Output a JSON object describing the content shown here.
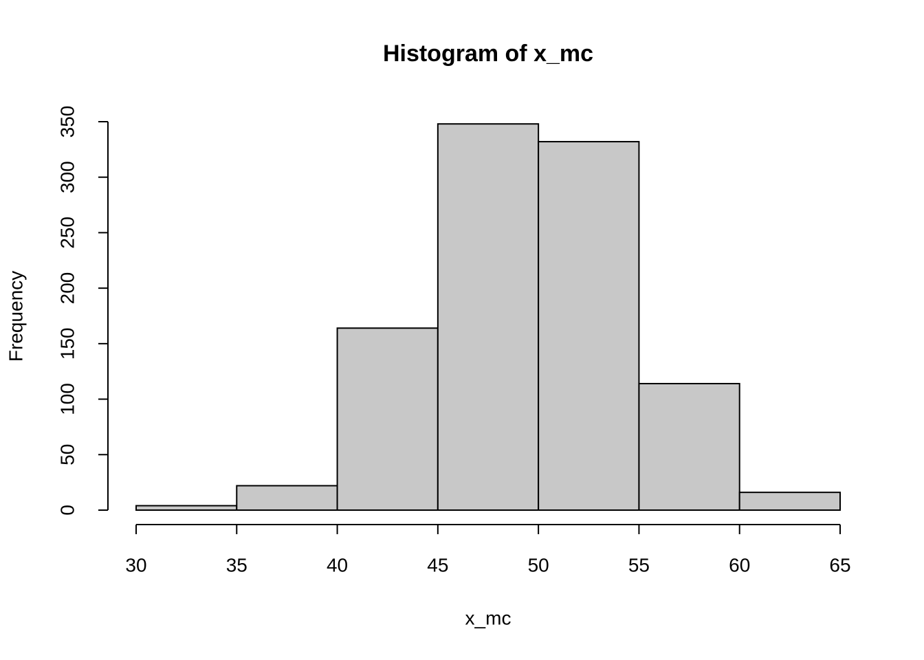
{
  "chart_data": {
    "type": "histogram",
    "title": "Histogram of x_mc",
    "x_label": "x_mc",
    "y_label": "Frequency",
    "bins": [
      30,
      35,
      40,
      45,
      50,
      55,
      60,
      65
    ],
    "values": [
      4,
      22,
      164,
      348,
      332,
      114,
      16
    ],
    "color": "#c8c8c8",
    "xlim": [
      30,
      65
    ],
    "xticks": [
      30,
      35,
      40,
      45,
      50,
      55,
      60,
      65
    ],
    "ylim": [
      0,
      350
    ],
    "yticks": [
      0,
      50,
      100,
      150,
      200,
      250,
      300,
      350
    ]
  }
}
